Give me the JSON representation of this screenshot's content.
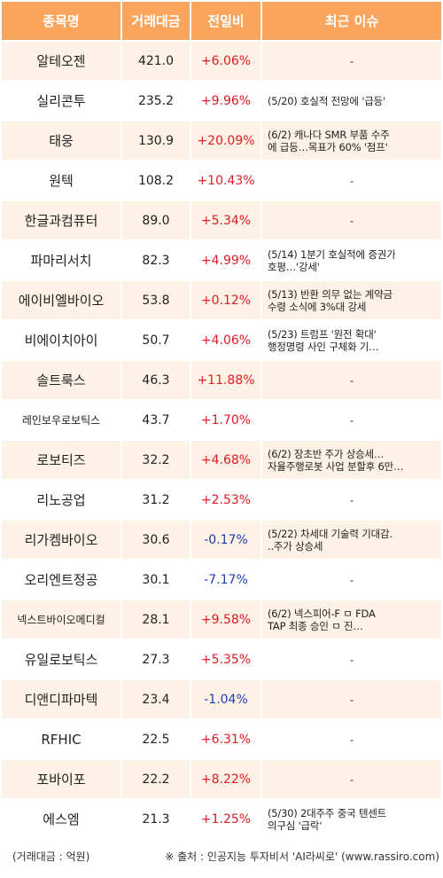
{
  "headers": [
    "종목명",
    "거래대금",
    "전일비",
    "최근 이슈"
  ],
  "rows": [
    {
      "name": "알테오젠",
      "value": "421.0",
      "change": "+6.06%",
      "dir": "up",
      "issue": "-"
    },
    {
      "name": "실리콘투",
      "value": "235.2",
      "change": "+9.96%",
      "dir": "up",
      "issue": "(5/20) 호실적 전망에 '급등'"
    },
    {
      "name": "태웅",
      "value": "130.9",
      "change": "+20.09%",
      "dir": "up",
      "issue": "(6/2) 캐나다 SMR 부품 수주\n에 급등…목표가 60% '점프'"
    },
    {
      "name": "원텍",
      "value": "108.2",
      "change": "+10.43%",
      "dir": "up",
      "issue": "-"
    },
    {
      "name": "한글과컴퓨터",
      "value": "89.0",
      "change": "+5.34%",
      "dir": "up",
      "issue": "-"
    },
    {
      "name": "파마리서치",
      "value": "82.3",
      "change": "+4.99%",
      "dir": "up",
      "issue": "(5/14) 1분기 호실적에 증권가\n호평…'강세'"
    },
    {
      "name": "에이비엘바이오",
      "value": "53.8",
      "change": "+0.12%",
      "dir": "up",
      "issue": "(5/13) 반환 의무 없는 계약금\n수령 소식에 3%대 강세"
    },
    {
      "name": "비에이치아이",
      "value": "50.7",
      "change": "+4.06%",
      "dir": "up",
      "issue": "(5/23) 트럼프 '원전 확대'\n행정명령 사인 구체화 기…"
    },
    {
      "name": "솔트룩스",
      "value": "46.3",
      "change": "+11.88%",
      "dir": "up",
      "issue": "-"
    },
    {
      "name": "레인보우로보틱스",
      "value": "43.7",
      "change": "+1.70%",
      "dir": "up",
      "issue": "-"
    },
    {
      "name": "로보티즈",
      "value": "32.2",
      "change": "+4.68%",
      "dir": "up",
      "issue": "(6/2) 장초반 주가 상승세…\n자율주행로봇 사업 분할후 6만…"
    },
    {
      "name": "리노공업",
      "value": "31.2",
      "change": "+2.53%",
      "dir": "up",
      "issue": "-"
    },
    {
      "name": "리가켐바이오",
      "value": "30.6",
      "change": "-0.17%",
      "dir": "down",
      "issue": "(5/22) 차세대 기술력 기대감.\n..주가 상승세"
    },
    {
      "name": "오리엔트정공",
      "value": "30.1",
      "change": "-7.17%",
      "dir": "down",
      "issue": "-"
    },
    {
      "name": "넥스트바이오메디컬",
      "value": "28.1",
      "change": "+9.58%",
      "dir": "up",
      "issue": "(6/2) 넥스피어-F ㅁ FDA\nTAP 최종 승인 ㅁ 진…"
    },
    {
      "name": "유일로보틱스",
      "value": "27.3",
      "change": "+5.35%",
      "dir": "up",
      "issue": "-"
    },
    {
      "name": "디앤디파마텍",
      "value": "23.4",
      "change": "-1.04%",
      "dir": "down",
      "issue": "-"
    },
    {
      "name": "RFHIC",
      "value": "22.5",
      "change": "+6.31%",
      "dir": "up",
      "issue": "-"
    },
    {
      "name": "포바이포",
      "value": "22.2",
      "change": "+8.22%",
      "dir": "up",
      "issue": "-"
    },
    {
      "name": "에스엠",
      "value": "21.3",
      "change": "+1.25%",
      "dir": "up",
      "issue": "(5/30) 2대주주 중국 텐센트\n의구심 '급락'"
    }
  ],
  "footer": {
    "unit": "(거래대금 : 억원)",
    "source": "※ 출처 : 인공지능 투자비서 'AI라씨로' (www.rassiro.com)"
  },
  "colors": {
    "header_bg": "#f9a55d",
    "row_odd_bg": "#fef1e5",
    "up": "#e31b23",
    "down": "#1a3fb5"
  }
}
